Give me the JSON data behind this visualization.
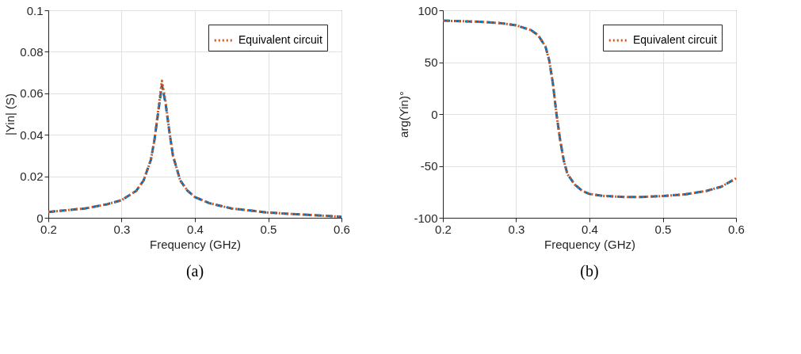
{
  "chart_data": [
    {
      "type": "line",
      "xlabel": "Frequency (GHz)",
      "ylabel": "|Yin| (S)",
      "xlim": [
        0.2,
        0.6
      ],
      "xticks": [
        0.2,
        0.3,
        0.4,
        0.5,
        0.6
      ],
      "ylim": [
        0,
        0.1
      ],
      "yticks": [
        0,
        0.02,
        0.04,
        0.06,
        0.08,
        0.1
      ],
      "grid": true,
      "legend": "top right",
      "annotations": [
        "(a)"
      ],
      "x": [
        0.2,
        0.25,
        0.28,
        0.3,
        0.32,
        0.33,
        0.34,
        0.345,
        0.35,
        0.355,
        0.36,
        0.365,
        0.37,
        0.38,
        0.39,
        0.4,
        0.42,
        0.45,
        0.5,
        0.55,
        0.6
      ],
      "series": [
        {
          "color": "#0072bd",
          "line_style": "dashed",
          "values": [
            0.0028,
            0.0045,
            0.0065,
            0.0085,
            0.013,
            0.018,
            0.028,
            0.038,
            0.051,
            0.064,
            0.055,
            0.042,
            0.03,
            0.018,
            0.013,
            0.01,
            0.007,
            0.0045,
            0.0025,
            0.0015,
            0.0005
          ]
        },
        {
          "name": "Equivalent circuit",
          "color": "#d95319",
          "line_style": "dotted",
          "values": [
            0.0028,
            0.0045,
            0.0065,
            0.0085,
            0.013,
            0.018,
            0.028,
            0.038,
            0.052,
            0.066,
            0.056,
            0.042,
            0.03,
            0.018,
            0.013,
            0.01,
            0.007,
            0.0045,
            0.0025,
            0.0015,
            0.0005
          ]
        }
      ]
    },
    {
      "type": "line",
      "xlabel": "Frequency (GHz)",
      "ylabel": "arg(Yin)°",
      "xlim": [
        0.2,
        0.6
      ],
      "xticks": [
        0.2,
        0.3,
        0.4,
        0.5,
        0.6
      ],
      "ylim": [
        -100,
        100
      ],
      "yticks": [
        -100,
        -50,
        0,
        50,
        100
      ],
      "grid": true,
      "legend": "top right",
      "annotations": [
        "(b)"
      ],
      "x": [
        0.2,
        0.25,
        0.28,
        0.3,
        0.32,
        0.33,
        0.34,
        0.345,
        0.35,
        0.355,
        0.36,
        0.365,
        0.37,
        0.38,
        0.39,
        0.4,
        0.42,
        0.45,
        0.47,
        0.5,
        0.53,
        0.56,
        0.58,
        0.6
      ],
      "series": [
        {
          "color": "#0072bd",
          "line_style": "dashed",
          "values": [
            90,
            89,
            87.5,
            85.5,
            81,
            76,
            65,
            52,
            30,
            0,
            -25,
            -45,
            -58,
            -68,
            -74,
            -77,
            -79,
            -80,
            -80,
            -79,
            -77.5,
            -74,
            -70,
            -62
          ]
        },
        {
          "name": "Equivalent circuit",
          "color": "#d95319",
          "line_style": "dotted",
          "values": [
            90,
            89,
            87.5,
            85.5,
            81,
            76,
            65,
            52,
            30,
            0,
            -25,
            -45,
            -58,
            -68,
            -74,
            -77,
            -79,
            -80,
            -80,
            -79,
            -77.5,
            -74,
            -70,
            -62
          ]
        }
      ]
    }
  ]
}
